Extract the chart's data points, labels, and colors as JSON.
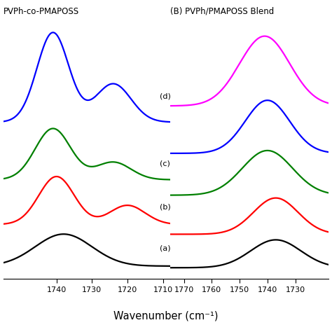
{
  "left_title": "PVPh-co-PMAPOSS",
  "right_title": "(B) PVPh/PMAPOSS Blend",
  "xlabel": "Wavenumber (cm⁻¹)",
  "left_colors": [
    "black",
    "red",
    "green",
    "blue"
  ],
  "right_colors": [
    "black",
    "red",
    "green",
    "blue",
    "magenta"
  ],
  "left_labels": [
    "(a)",
    "(b)",
    "(c)",
    "(d)"
  ],
  "background_color": "#ffffff",
  "line_width": 1.6
}
